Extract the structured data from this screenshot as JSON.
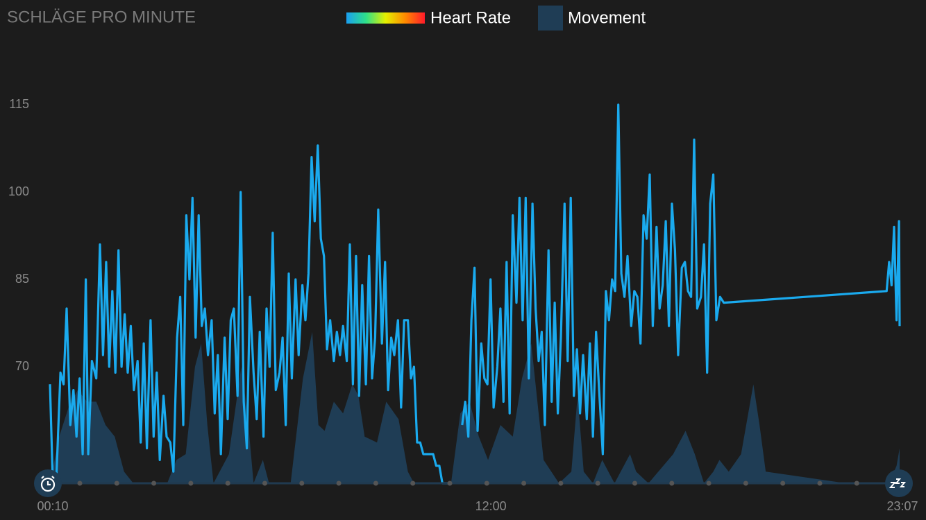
{
  "chart_data": {
    "type": "line",
    "title": "SCHLÄGE PRO MINUTE",
    "xlim": [
      10,
      1387
    ],
    "xticks": [
      {
        "value": 10,
        "label": "00:10"
      },
      {
        "value": 720,
        "label": "12:00"
      },
      {
        "value": 1387,
        "label": "23:07"
      }
    ],
    "ylim": [
      50,
      128
    ],
    "yticks": [
      70,
      85,
      100,
      115
    ],
    "grid": false,
    "series": [
      {
        "name": "Movement",
        "color": "#1f3d55",
        "fill": true,
        "x": [
          10,
          25,
          40,
          55,
          70,
          85,
          100,
          115,
          130,
          145,
          180,
          200,
          215,
          230,
          245,
          255,
          265,
          275,
          300,
          320,
          330,
          340,
          355,
          365,
          380,
          400,
          420,
          435,
          445,
          455,
          470,
          485,
          500,
          510,
          520,
          540,
          555,
          575,
          590,
          600,
          660,
          675,
          690,
          705,
          720,
          740,
          760,
          775,
          790,
          810,
          835,
          855,
          865,
          875,
          890,
          905,
          915,
          925,
          950,
          960,
          980,
          1020,
          1040,
          1055,
          1070,
          1085,
          1095,
          1110,
          1130,
          1150,
          1160,
          1170,
          1300,
          1370,
          1382,
          1387
        ],
        "values": [
          50,
          58,
          63,
          66,
          64,
          64,
          60,
          58,
          52,
          50,
          50,
          50,
          54,
          55,
          70,
          74,
          60,
          50,
          55,
          70,
          62,
          50,
          54,
          50,
          50,
          50,
          68,
          76,
          60,
          59,
          64,
          62,
          67,
          65,
          58,
          57,
          64,
          61,
          52,
          50,
          50,
          62,
          64,
          58,
          54,
          60,
          58,
          68,
          74,
          54,
          50,
          52,
          65,
          52,
          50,
          54,
          52,
          50,
          55,
          52,
          50,
          55,
          59,
          55,
          50,
          52,
          54,
          52,
          55,
          67,
          60,
          52,
          50,
          50,
          53,
          56
        ]
      },
      {
        "name": "Heart Rate",
        "color": "#1aaaee",
        "gradient": [
          "#1a9ff0",
          "#2ee08a",
          "#e4f000",
          "#ff8a00",
          "#ff1a2a"
        ],
        "x": [
          10,
          14,
          20,
          27,
          32,
          37,
          43,
          48,
          53,
          58,
          63,
          68,
          72,
          78,
          85,
          91,
          96,
          101,
          106,
          111,
          116,
          121,
          126,
          131,
          136,
          141,
          146,
          152,
          157,
          162,
          167,
          173,
          178,
          183,
          188,
          194,
          199,
          205,
          210,
          216,
          221,
          226,
          231,
          236,
          241,
          246,
          251,
          256,
          261,
          266,
          272,
          277,
          282,
          287,
          293,
          298,
          303,
          308,
          314,
          319,
          324,
          329,
          334,
          340,
          345,
          350,
          356,
          361,
          366,
          371,
          376,
          382,
          387,
          392,
          397,
          402,
          408,
          413,
          419,
          424,
          429,
          434,
          439,
          444,
          449,
          454,
          459,
          464,
          470,
          475,
          480,
          485,
          491,
          496,
          501,
          506,
          511,
          516,
          522,
          527,
          532,
          537,
          542,
          548,
          553,
          558,
          563,
          568,
          574,
          579,
          584,
          590,
          595,
          600,
          605,
          610,
          615,
          620,
          626,
          631,
          636,
          641,
          646,
          651,
          658,
          665,
          678,
          683,
          688,
          693,
          698,
          703,
          709,
          714,
          719,
          724,
          729,
          735,
          740,
          745,
          750,
          755,
          760,
          766,
          771,
          776,
          781,
          786,
          792,
          797,
          802,
          807,
          812,
          818,
          823,
          828,
          833,
          838,
          844,
          849,
          854,
          859,
          864,
          869,
          874,
          880,
          885,
          890,
          895,
          900,
          906,
          911,
          916,
          921,
          926,
          931,
          936,
          941,
          946,
          952,
          957,
          962,
          967,
          972,
          977,
          982,
          987,
          993,
          998,
          1003,
          1008,
          1013,
          1018,
          1023,
          1028,
          1034,
          1039,
          1044,
          1049,
          1054,
          1059,
          1065,
          1070,
          1075,
          1080,
          1085,
          1090,
          1096,
          1102,
          1366,
          1370,
          1374,
          1378,
          1382,
          1386,
          1387
        ],
        "values": [
          67,
          52,
          50,
          69,
          67,
          80,
          60,
          66,
          58,
          68,
          55,
          85,
          55,
          71,
          68,
          91,
          72,
          88,
          70,
          83,
          69,
          90,
          70,
          79,
          69,
          77,
          66,
          71,
          57,
          74,
          56,
          78,
          58,
          69,
          54,
          65,
          58,
          57,
          52,
          75,
          82,
          60,
          96,
          85,
          99,
          75,
          96,
          77,
          80,
          72,
          78,
          62,
          72,
          55,
          75,
          61,
          78,
          80,
          65,
          100,
          64,
          56,
          82,
          69,
          61,
          76,
          58,
          80,
          70,
          93,
          66,
          69,
          75,
          60,
          86,
          68,
          85,
          72,
          84,
          78,
          86,
          106,
          95,
          108,
          92,
          89,
          73,
          78,
          71,
          76,
          72,
          77,
          71,
          91,
          67,
          89,
          65,
          84,
          67,
          89,
          68,
          75,
          97,
          74,
          88,
          66,
          75,
          72,
          78,
          63,
          78,
          78,
          68,
          70,
          57,
          57,
          55,
          55,
          55,
          55,
          53,
          53,
          50,
          50,
          50,
          null,
          60,
          64,
          58,
          78,
          87,
          59,
          74,
          68,
          67,
          85,
          63,
          70,
          80,
          64,
          88,
          62,
          96,
          81,
          99,
          78,
          99,
          68,
          98,
          80,
          71,
          76,
          60,
          90,
          64,
          81,
          62,
          75,
          98,
          71,
          99,
          65,
          73,
          62,
          72,
          61,
          74,
          58,
          76,
          66,
          55,
          83,
          78,
          85,
          83,
          115,
          86,
          82,
          89,
          77,
          83,
          82,
          74,
          96,
          92,
          103,
          77,
          94,
          80,
          84,
          95,
          77,
          98,
          90,
          72,
          87,
          88,
          83,
          82,
          109,
          80,
          82,
          91,
          69,
          98,
          103,
          78,
          82,
          81,
          83,
          88,
          84,
          94,
          78,
          95,
          77
        ]
      }
    ]
  }
}
